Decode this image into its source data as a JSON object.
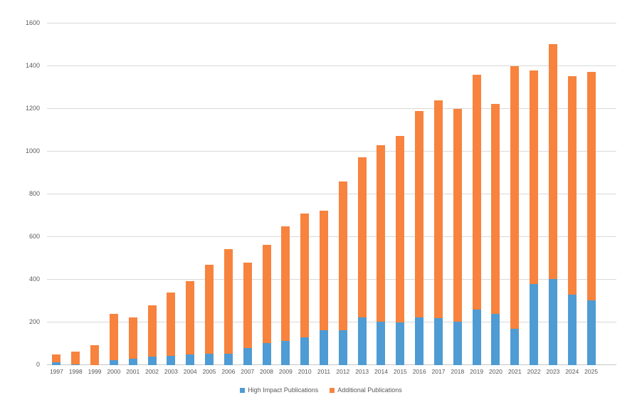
{
  "chart_data": {
    "type": "bar",
    "stacked": true,
    "title": "",
    "categories": [
      "1997",
      "1998",
      "1999",
      "2000",
      "2001",
      "2002",
      "2003",
      "2004",
      "2005",
      "2006",
      "2007",
      "2008",
      "2009",
      "2010",
      "2011",
      "2012",
      "2013",
      "2014",
      "2015",
      "2016",
      "2017",
      "2018",
      "2019",
      "2020",
      "2021",
      "2022",
      "2023",
      "2024",
      "2025"
    ],
    "series": [
      {
        "name": "High Impact Publications",
        "color": "#4f9bd3",
        "values": [
          15,
          5,
          0,
          25,
          30,
          40,
          45,
          50,
          55,
          55,
          80,
          105,
          115,
          130,
          165,
          165,
          225,
          205,
          200,
          225,
          220,
          205,
          260,
          240,
          170,
          380,
          405,
          330,
          305
        ]
      },
      {
        "name": "Additional Publications",
        "color": "#f7833e",
        "values": [
          35,
          60,
          95,
          215,
          195,
          240,
          295,
          345,
          415,
          490,
          400,
          460,
          535,
          580,
          560,
          695,
          750,
          825,
          875,
          965,
          1020,
          995,
          1100,
          985,
          1230,
          1000,
          1100,
          1025,
          1070
        ]
      }
    ],
    "xlabel": "",
    "ylabel": "",
    "ylim": [
      0,
      1600
    ],
    "y_ticks": [
      0,
      200,
      400,
      600,
      800,
      1000,
      1200,
      1400,
      1600
    ],
    "grid": true,
    "legend_position": "bottom"
  },
  "style": {
    "gridline_color": "#d9d9d9",
    "axis_line_color": "#c6c6c6",
    "tick_text_color": "#595959",
    "background_color": "#ffffff"
  }
}
